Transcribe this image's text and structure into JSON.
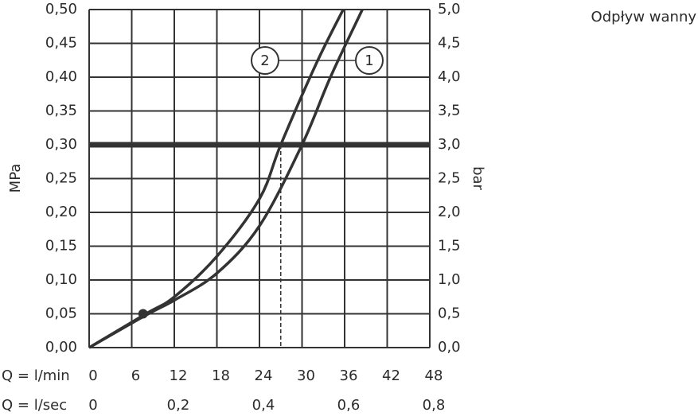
{
  "chart_data": {
    "type": "line",
    "title": "Odpływ wanny",
    "ylabel": "MPa",
    "y2label": "bar",
    "xlabel": "Q = l/min",
    "x2label": "Q = l/sec",
    "xlim": [
      0,
      48
    ],
    "xticks": [
      0,
      6,
      12,
      18,
      24,
      30,
      36,
      42,
      48
    ],
    "x2lim": [
      0,
      0.8
    ],
    "x2ticks": [
      0,
      {
        "value": 0.2,
        "label": "0,2"
      },
      {
        "value": 0.4,
        "label": "0,4"
      },
      {
        "value": 0.6,
        "label": "0,6"
      },
      {
        "value": 0.8,
        "label": "0,8"
      }
    ],
    "ylim": [
      0,
      0.5
    ],
    "yticks": [
      {
        "value": 0,
        "label": "0,00"
      },
      {
        "value": 0.05,
        "label": "0,05"
      },
      {
        "value": 0.1,
        "label": "0,10"
      },
      {
        "value": 0.15,
        "label": "0,15"
      },
      {
        "value": 0.2,
        "label": "0,20"
      },
      {
        "value": 0.25,
        "label": "0,25"
      },
      {
        "value": 0.3,
        "label": "0,30"
      },
      {
        "value": 0.35,
        "label": "0,35"
      },
      {
        "value": 0.4,
        "label": "0,40"
      },
      {
        "value": 0.45,
        "label": "0,45"
      },
      {
        "value": 0.5,
        "label": "0,50"
      }
    ],
    "y2lim": [
      0,
      5
    ],
    "y2ticks": [
      {
        "value": 0,
        "label": "0,0"
      },
      {
        "value": 0.5,
        "label": "0,5"
      },
      {
        "value": 1,
        "label": "1,0"
      },
      {
        "value": 1.5,
        "label": "1,5"
      },
      {
        "value": 2,
        "label": "2,0"
      },
      {
        "value": 2.5,
        "label": "2,5"
      },
      {
        "value": 3,
        "label": "3,0"
      },
      {
        "value": 3.5,
        "label": "3,5"
      },
      {
        "value": 4,
        "label": "4,0"
      },
      {
        "value": 4.5,
        "label": "4,5"
      },
      {
        "value": 5,
        "label": "5,0"
      }
    ],
    "grid": true,
    "reference_y": 0.3,
    "reference_x": [
      27,
      30
    ],
    "marker_point": {
      "x": 7.6,
      "y": 0.05
    },
    "series": [
      {
        "name": "1",
        "color": "#333333",
        "x": [
          0,
          8,
          12,
          18,
          24,
          30,
          34,
          38.5
        ],
        "values": [
          0,
          0.048,
          0.07,
          0.11,
          0.18,
          0.3,
          0.4,
          0.5
        ]
      },
      {
        "name": "2",
        "color": "#333333",
        "x": [
          0,
          8,
          12,
          18,
          24,
          27,
          32,
          35.8
        ],
        "values": [
          0,
          0.05,
          0.075,
          0.135,
          0.22,
          0.3,
          0.42,
          0.5
        ]
      }
    ]
  }
}
